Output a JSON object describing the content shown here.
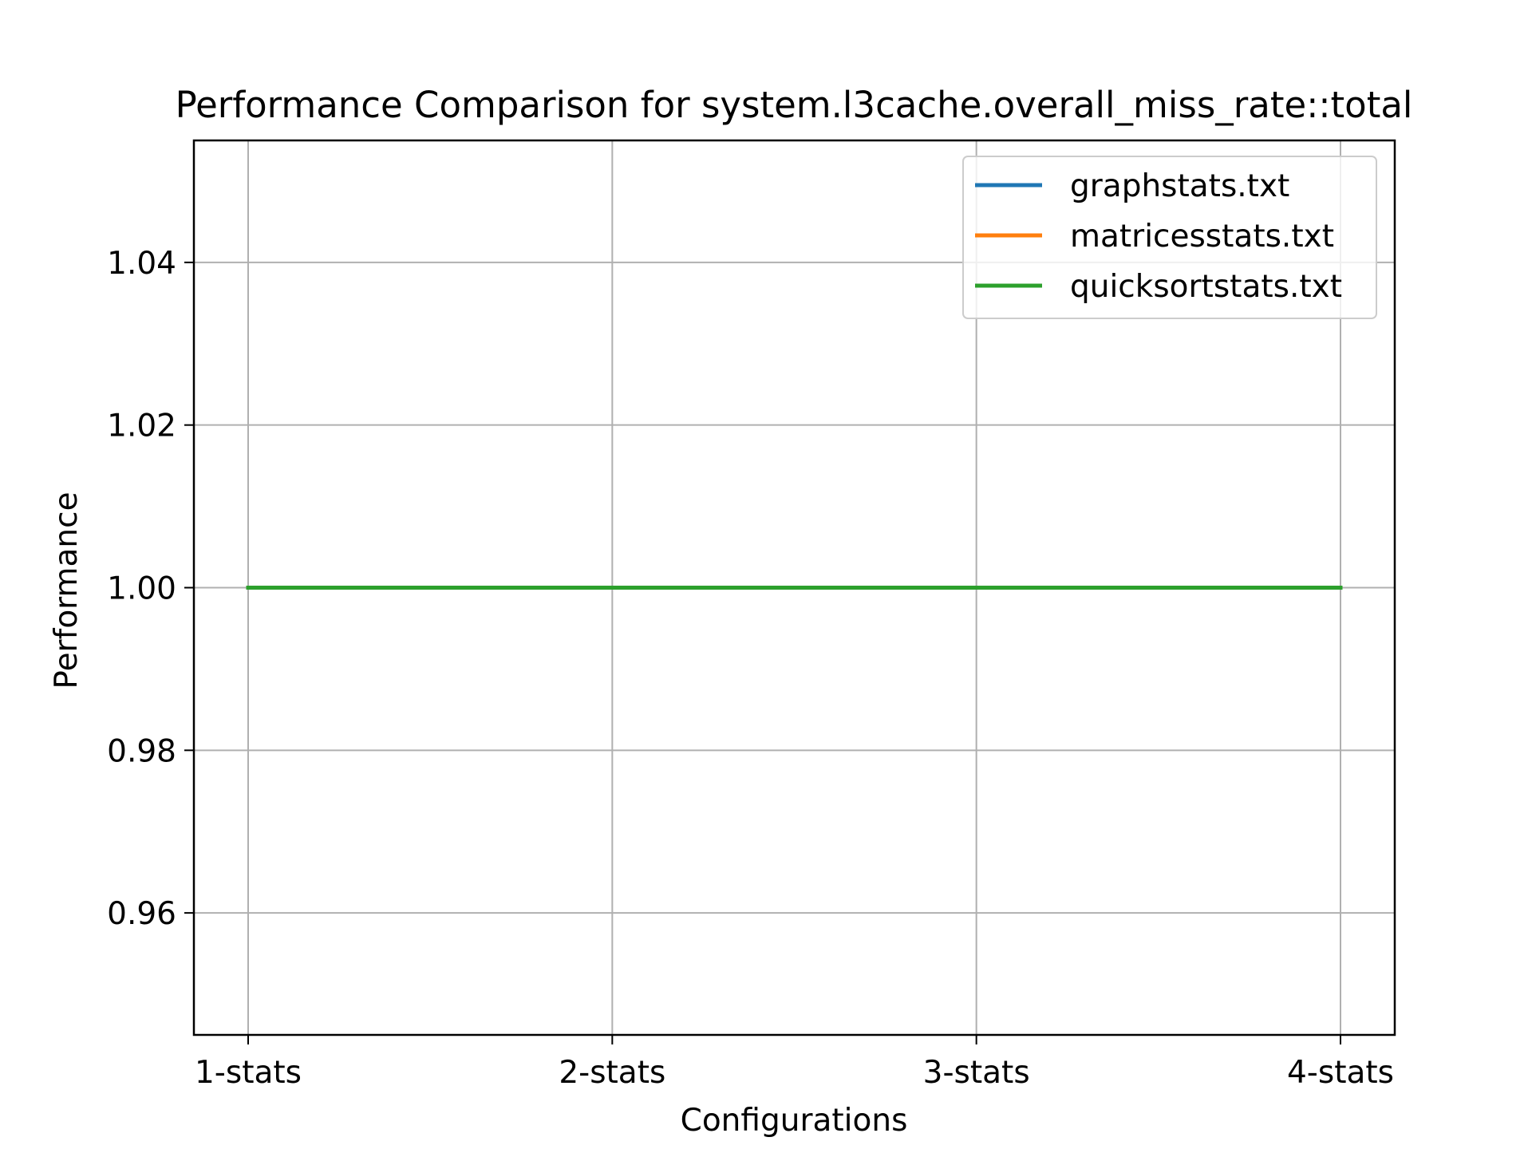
{
  "chart_data": {
    "type": "line",
    "title": "Performance Comparison for system.l3cache.overall_miss_rate::total",
    "xlabel": "Configurations",
    "ylabel": "Performance",
    "categories": [
      "1-stats",
      "2-stats",
      "3-stats",
      "4-stats"
    ],
    "ylim": [
      0.945,
      1.055
    ],
    "yticks": [
      0.96,
      0.98,
      1.0,
      1.02,
      1.04
    ],
    "ytick_labels": [
      "0.96",
      "0.98",
      "1.00",
      "1.02",
      "1.04"
    ],
    "grid": true,
    "legend_position": "top-right",
    "series": [
      {
        "name": "graphstats.txt",
        "color": "#1f77b4",
        "values": [
          1.0,
          1.0,
          1.0,
          1.0
        ]
      },
      {
        "name": "matricesstats.txt",
        "color": "#ff7f0e",
        "values": [
          1.0,
          1.0,
          1.0,
          1.0
        ]
      },
      {
        "name": "quicksortstats.txt",
        "color": "#2ca02c",
        "values": [
          1.0,
          1.0,
          1.0,
          1.0
        ]
      }
    ]
  }
}
